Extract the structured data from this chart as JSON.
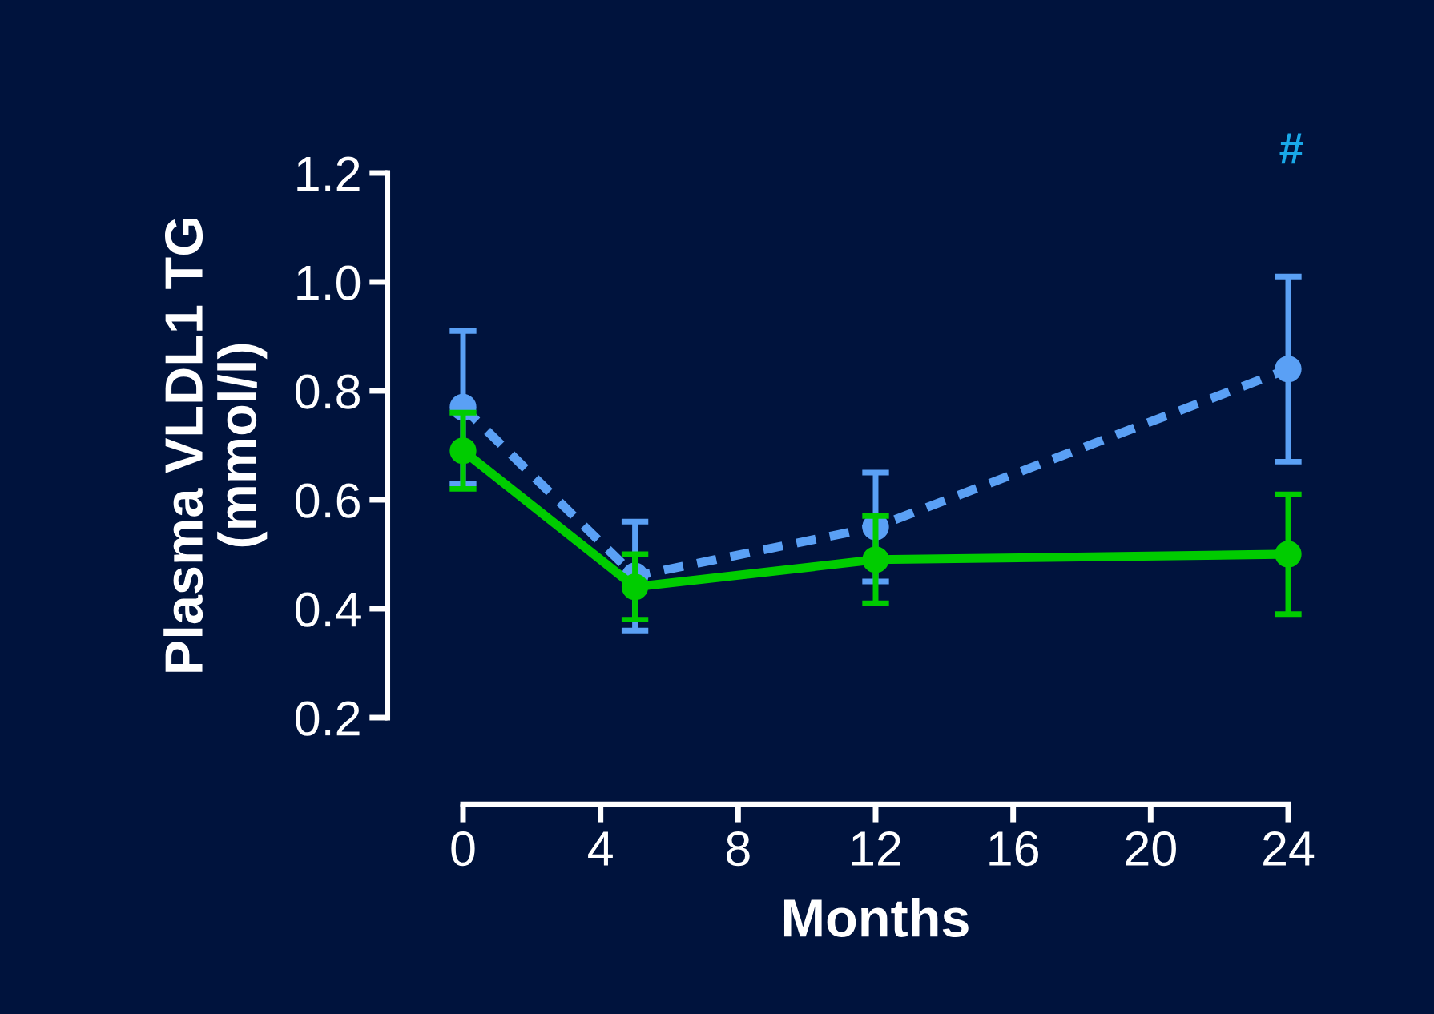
{
  "chart_data": {
    "type": "line",
    "xlabel": "Months",
    "ylabel": "Plasma VLDL1 TG\n(mmol/l)",
    "x": [
      0,
      5,
      12,
      24
    ],
    "xlim": [
      0,
      24
    ],
    "xticks": [
      0,
      4,
      8,
      12,
      16,
      20,
      24
    ],
    "ylim": [
      0.2,
      1.2
    ],
    "yticks": [
      0.2,
      0.4,
      0.6,
      0.8,
      {
        "value": 1,
        "label": "1.0"
      },
      1.2
    ],
    "series": [
      {
        "color": "#5aa0f5",
        "line_style": "dashed",
        "values": [
          0.77,
          0.46,
          0.55,
          0.84
        ],
        "errors": [
          [
            0.63,
            0.91
          ],
          [
            0.36,
            0.56
          ],
          [
            0.45,
            0.65
          ],
          [
            0.67,
            1.01
          ]
        ]
      },
      {
        "color": "#00cc00",
        "line_style": "solid",
        "values": [
          0.69,
          0.44,
          0.49,
          0.5
        ],
        "errors": [
          [
            0.62,
            0.76
          ],
          [
            0.38,
            0.5
          ],
          [
            0.41,
            0.57
          ],
          [
            0.39,
            0.61
          ]
        ]
      }
    ],
    "marker": "circle",
    "annotations": [
      "#"
    ]
  }
}
